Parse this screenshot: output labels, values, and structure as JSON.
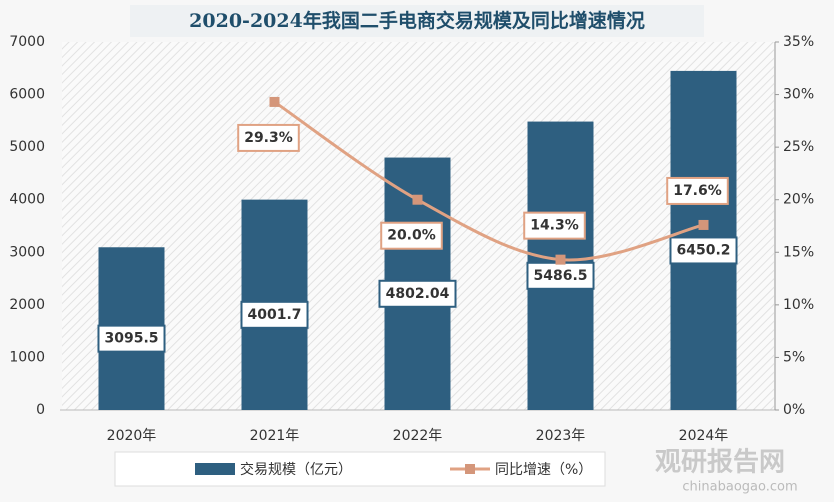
{
  "chart_data": {
    "type": "bar_line",
    "title": "2020-2024年我国二手电商交易规模及同比增速情况",
    "categories": [
      "2020年",
      "2021年",
      "2022年",
      "2023年",
      "2024年"
    ],
    "series": [
      {
        "name": "交易规模（亿元）",
        "color": "#2e5f80",
        "values": [
          3095.5,
          4001.7,
          4802.04,
          5486.5,
          6450.2
        ]
      },
      {
        "name": "同比增速（%）",
        "color": "#e0a283",
        "axis": "y2",
        "values": [
          null,
          29.3,
          20.0,
          14.3,
          17.6
        ],
        "value_labels": [
          null,
          "29.3%",
          "20.0%",
          "14.3%",
          "17.6%"
        ]
      }
    ],
    "ylim": [
      0,
      7000
    ],
    "yticks": [
      0,
      1000,
      2000,
      3000,
      4000,
      5000,
      6000,
      7000
    ],
    "y2lim": [
      0,
      35
    ],
    "y2ticks": [
      {
        "value": 0,
        "label": "0%"
      },
      {
        "value": 5,
        "label": "5%"
      },
      {
        "value": 10,
        "label": "10%"
      },
      {
        "value": 15,
        "label": "15%"
      },
      {
        "value": 20,
        "label": "20%"
      },
      {
        "value": 25,
        "label": "25%"
      },
      {
        "value": 30,
        "label": "30%"
      },
      {
        "value": 35,
        "label": "35%"
      }
    ],
    "legend": "bottom"
  },
  "watermark": {
    "name": "观研报告网",
    "url": "chinabaogao.com"
  }
}
